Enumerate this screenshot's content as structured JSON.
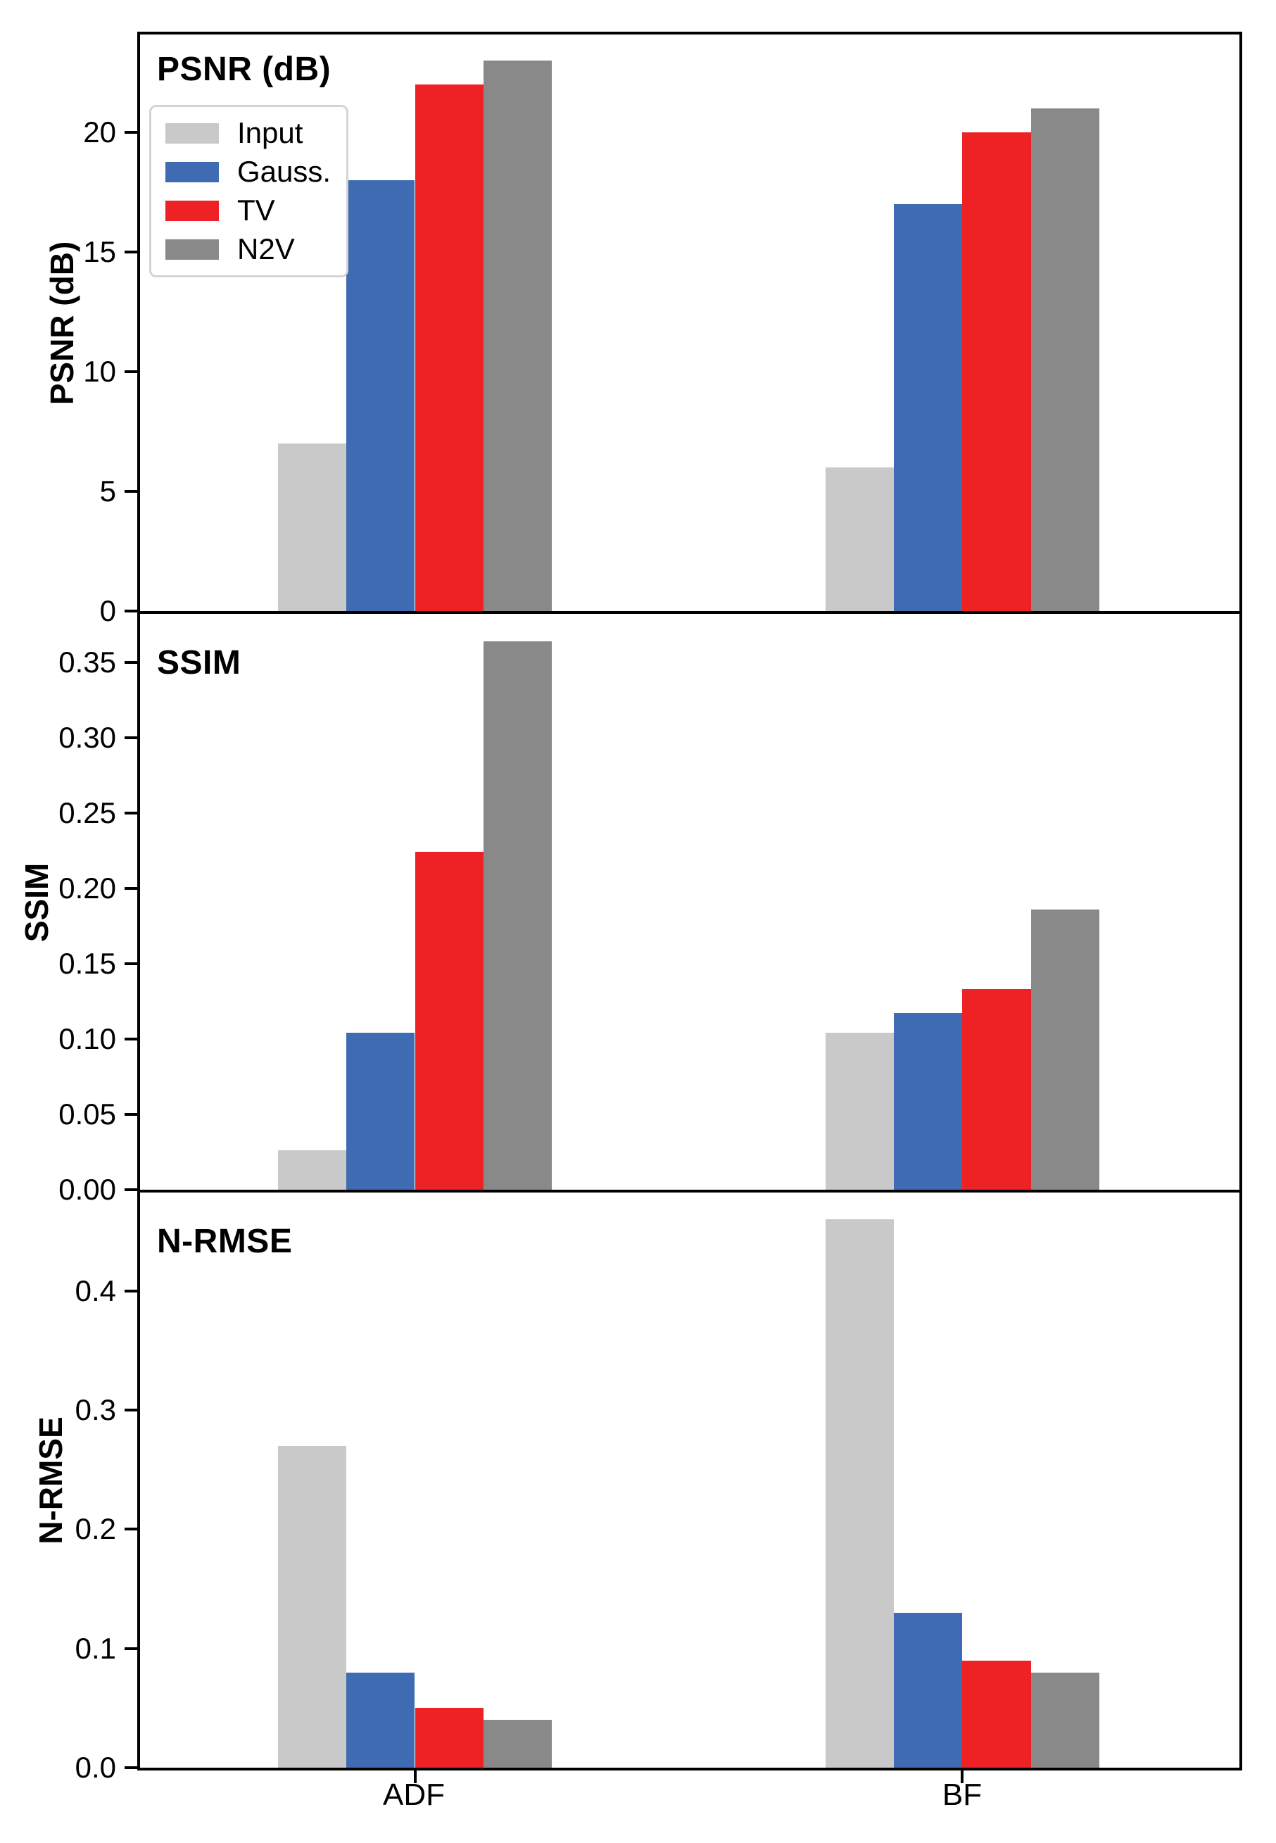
{
  "figure_title": "Denoising quality metrics bar chart",
  "categories": [
    "ADF",
    "BF"
  ],
  "legend": {
    "items": [
      {
        "key": "input",
        "label": "Input",
        "color": "#c9c9c9"
      },
      {
        "key": "gauss",
        "label": "Gauss.",
        "color": "#3e6bb2"
      },
      {
        "key": "tv",
        "label": "TV",
        "color": "#ee2224"
      },
      {
        "key": "n2v",
        "label": "N2V",
        "color": "#898989"
      }
    ]
  },
  "chart_data": [
    {
      "type": "bar",
      "id": "psnr",
      "title": "PSNR (dB)",
      "ylabel": "PSNR (dB)",
      "categories": [
        "ADF",
        "BF"
      ],
      "series": [
        {
          "key": "input",
          "name": "Input",
          "color": "#c9c9c9",
          "values": [
            7,
            6
          ]
        },
        {
          "key": "gauss",
          "name": "Gauss.",
          "color": "#3e6bb2",
          "values": [
            18,
            17
          ]
        },
        {
          "key": "tv",
          "name": "TV",
          "color": "#ee2224",
          "values": [
            22,
            20
          ]
        },
        {
          "key": "n2v",
          "name": "N2V",
          "color": "#898989",
          "values": [
            23,
            21
          ]
        }
      ],
      "ylim": [
        0,
        24.1
      ],
      "yticks": [
        {
          "value": 0,
          "label": "0"
        },
        {
          "value": 5,
          "label": "5"
        },
        {
          "value": 10,
          "label": "10"
        },
        {
          "value": 15,
          "label": "15"
        },
        {
          "value": 20,
          "label": "20"
        }
      ],
      "legend_position": "upper left",
      "grid": false
    },
    {
      "type": "bar",
      "id": "ssim",
      "title": "SSIM",
      "ylabel": "SSIM",
      "categories": [
        "ADF",
        "BF"
      ],
      "series": [
        {
          "key": "input",
          "name": "Input",
          "color": "#c9c9c9",
          "values": [
            0.026,
            0.104
          ]
        },
        {
          "key": "gauss",
          "name": "Gauss.",
          "color": "#3e6bb2",
          "values": [
            0.104,
            0.117
          ]
        },
        {
          "key": "tv",
          "name": "TV",
          "color": "#ee2224",
          "values": [
            0.224,
            0.133
          ]
        },
        {
          "key": "n2v",
          "name": "N2V",
          "color": "#898989",
          "values": [
            0.364,
            0.186
          ]
        }
      ],
      "ylim": [
        0,
        0.382
      ],
      "yticks": [
        {
          "value": 0.0,
          "label": "0.00"
        },
        {
          "value": 0.05,
          "label": "0.05"
        },
        {
          "value": 0.1,
          "label": "0.10"
        },
        {
          "value": 0.15,
          "label": "0.15"
        },
        {
          "value": 0.2,
          "label": "0.20"
        },
        {
          "value": 0.25,
          "label": "0.25"
        },
        {
          "value": 0.3,
          "label": "0.30"
        },
        {
          "value": 0.35,
          "label": "0.35"
        }
      ],
      "legend_position": "none",
      "grid": false
    },
    {
      "type": "bar",
      "id": "nrmse",
      "title": "N-RMSE",
      "ylabel": "N-RMSE",
      "categories": [
        "ADF",
        "BF"
      ],
      "series": [
        {
          "key": "input",
          "name": "Input",
          "color": "#c9c9c9",
          "values": [
            0.27,
            0.46
          ]
        },
        {
          "key": "gauss",
          "name": "Gauss.",
          "color": "#3e6bb2",
          "values": [
            0.08,
            0.13
          ]
        },
        {
          "key": "tv",
          "name": "TV",
          "color": "#ee2224",
          "values": [
            0.05,
            0.09
          ]
        },
        {
          "key": "n2v",
          "name": "N2V",
          "color": "#898989",
          "values": [
            0.04,
            0.08
          ]
        }
      ],
      "ylim": [
        0,
        0.4825
      ],
      "yticks": [
        {
          "value": 0.0,
          "label": "0.0"
        },
        {
          "value": 0.1,
          "label": "0.1"
        },
        {
          "value": 0.2,
          "label": "0.2"
        },
        {
          "value": 0.3,
          "label": "0.3"
        },
        {
          "value": 0.4,
          "label": "0.4"
        }
      ],
      "legend_position": "none",
      "grid": false
    }
  ]
}
